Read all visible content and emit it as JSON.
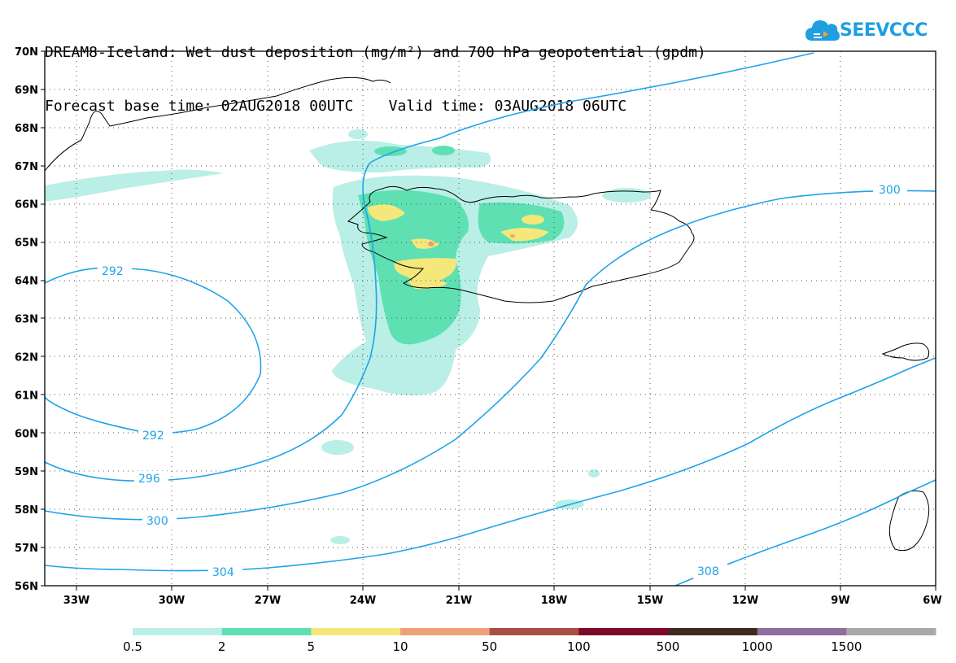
{
  "title": {
    "line1": "DREAM8-Iceland: Wet dust deposition (mg/m²) and 700 hPa geopotential (gpdm)",
    "line2": "Forecast base time: 02AUG2018 00UTC    Valid time: 03AUG2018 06UTC"
  },
  "logo": {
    "text": "SEEVCCC",
    "icon": "cloud-icon",
    "color": "#1f9ee0"
  },
  "axes": {
    "lat_labels": [
      "70N",
      "69N",
      "68N",
      "67N",
      "66N",
      "65N",
      "64N",
      "63N",
      "62N",
      "61N",
      "60N",
      "59N",
      "58N",
      "57N",
      "56N"
    ],
    "lon_labels": [
      "33W",
      "30W",
      "27W",
      "24W",
      "21W",
      "18W",
      "15W",
      "12W",
      "9W",
      "6W"
    ]
  },
  "contour_labels": [
    "300",
    "292",
    "292",
    "296",
    "300",
    "304",
    "308"
  ],
  "colorbar": {
    "colors": [
      "#b9efe6",
      "#5ee0b3",
      "#f5e87a",
      "#eea179",
      "#aa4f46",
      "#7e0a2a",
      "#402a20",
      "#8e6f9e",
      "#a9a9a9"
    ],
    "labels": [
      "0.5",
      "2",
      "5",
      "10",
      "50",
      "100",
      "500",
      "1000",
      "1500"
    ]
  },
  "chart_data": {
    "type": "heatmap",
    "title": "DREAM8-Iceland: Wet dust deposition (mg/m²) and 700 hPa geopotential (gpdm)",
    "region": {
      "lon": [
        -34.5,
        -6
      ],
      "lat": [
        56,
        70
      ]
    },
    "fill_variable": "Wet dust deposition (mg/m²)",
    "fill_levels": [
      0.5,
      2,
      5,
      10,
      50,
      100,
      500,
      1000,
      1500
    ],
    "contour_variable": "700 hPa geopotential (gpdm)",
    "contour_levels": [
      292,
      296,
      300,
      304,
      308
    ],
    "grid": true
  }
}
